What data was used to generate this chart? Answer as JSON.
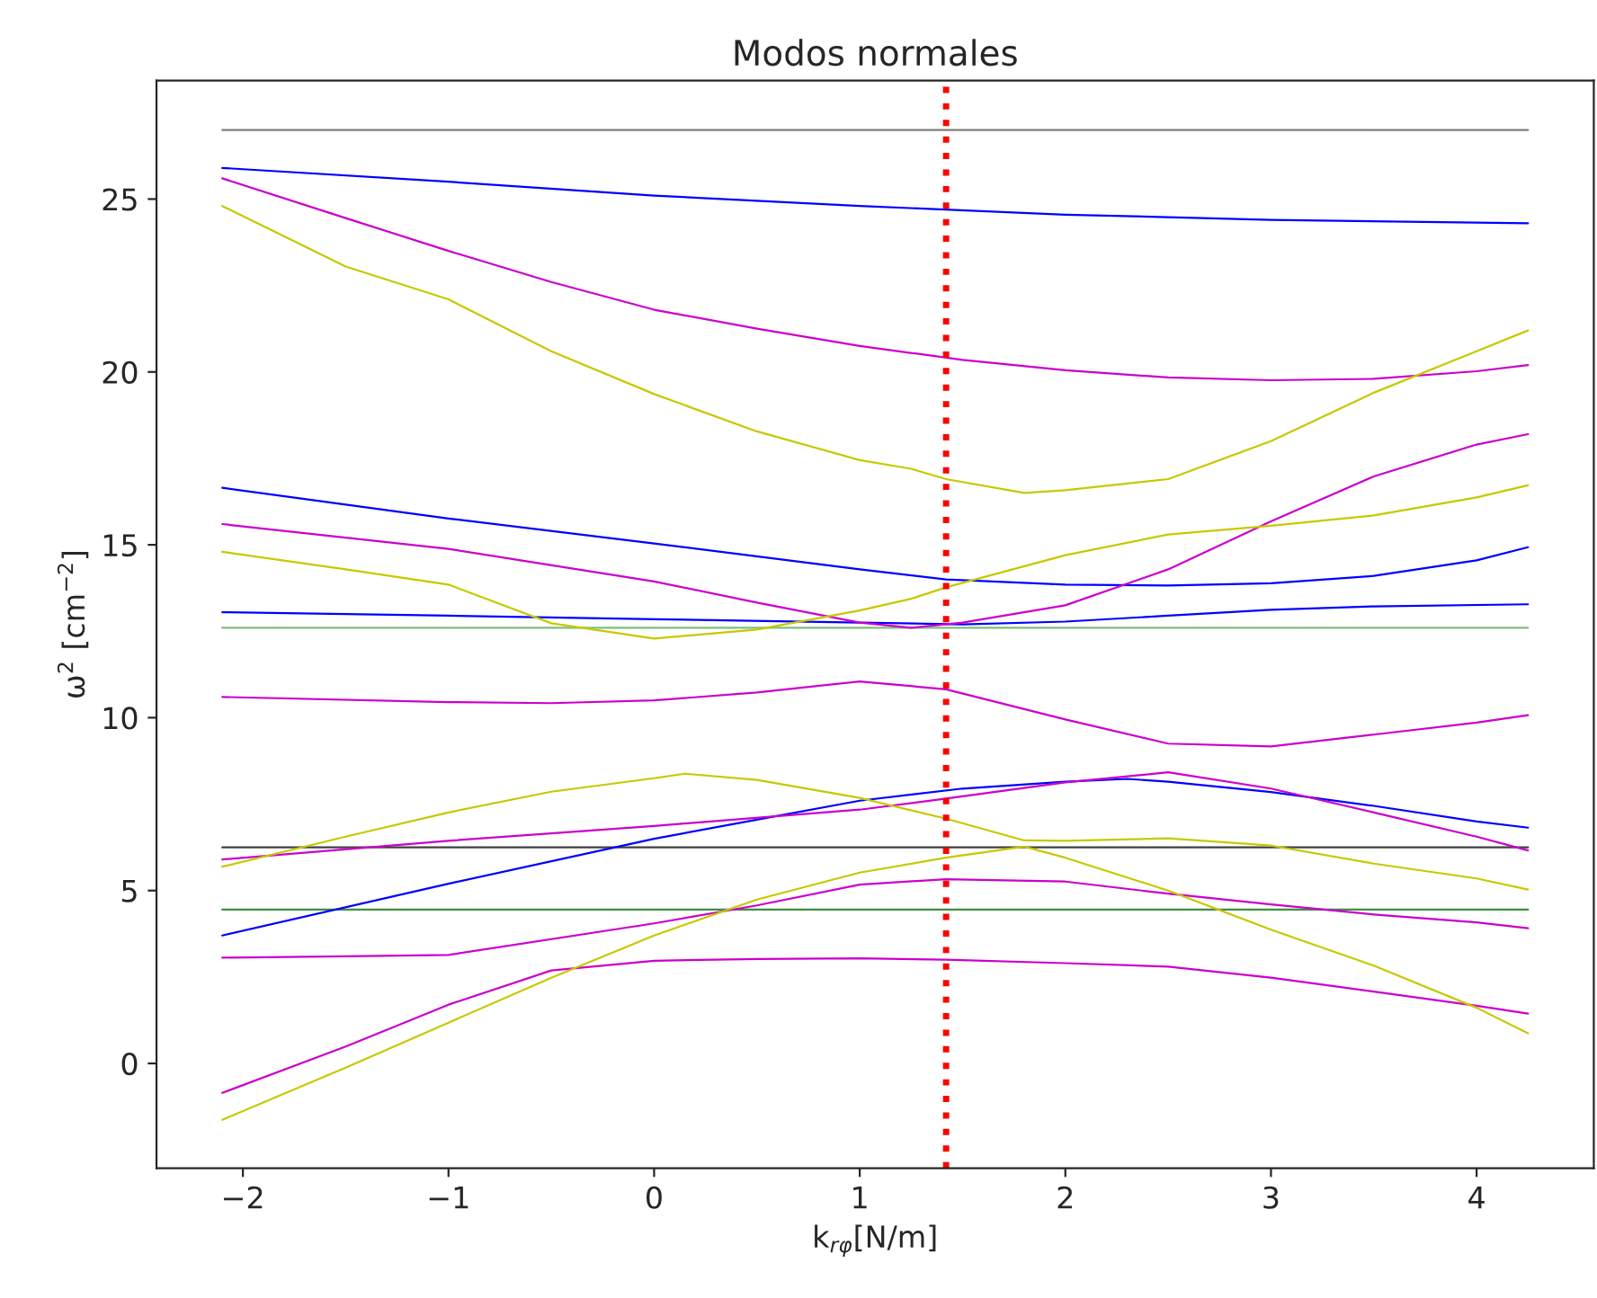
{
  "chart_data": {
    "type": "line",
    "title": "Modos normales",
    "xlabel": "k$_{rφ}$[N/m]",
    "ylabel": "ω$^{2}$ [cm$^{−2}$]",
    "xlim": [
      -2.42,
      4.57
    ],
    "ylim": [
      -3.03,
      28.43
    ],
    "xticks": [
      -2,
      -1,
      0,
      1,
      2,
      3,
      4
    ],
    "yticks": [
      0,
      5,
      10,
      15,
      20,
      25
    ],
    "grid": false,
    "line_style": "solid",
    "marker": "none",
    "series": [
      {
        "color": "#7f7f7f",
        "x": [
          -2.1,
          4.25
        ],
        "values": [
          27.0,
          27.0
        ]
      },
      {
        "color": "#404040",
        "x": [
          -2.1,
          4.25
        ],
        "values": [
          6.25,
          6.25
        ]
      },
      {
        "color": "#7fbf7f",
        "x": [
          -2.1,
          4.25
        ],
        "values": [
          12.6,
          12.6
        ]
      },
      {
        "color": "#3f8f3f",
        "x": [
          -2.1,
          4.25
        ],
        "values": [
          4.45,
          4.45
        ]
      },
      {
        "color": "#0000ff",
        "x": [
          -2.1,
          -1,
          0,
          1,
          2,
          3,
          4.25
        ],
        "values": [
          25.9,
          25.5,
          25.1,
          24.8,
          24.55,
          24.4,
          24.3
        ]
      },
      {
        "color": "#0000ff",
        "x": [
          -2.1,
          -1,
          0,
          1,
          1.42,
          2,
          2.5,
          3,
          3.5,
          4,
          4.25
        ],
        "values": [
          16.65,
          15.76,
          15.04,
          14.29,
          14.0,
          13.85,
          13.82,
          13.89,
          14.1,
          14.55,
          14.93
        ]
      },
      {
        "color": "#0000ff",
        "x": [
          -2.1,
          -1,
          0,
          1,
          1.5,
          2,
          2.5,
          3,
          3.5,
          4.25
        ],
        "values": [
          13.05,
          12.95,
          12.85,
          12.75,
          12.7,
          12.78,
          12.95,
          13.12,
          13.22,
          13.28
        ]
      },
      {
        "color": "#0000ff",
        "x": [
          -2.1,
          -1,
          0,
          0.5,
          1,
          1.5,
          2,
          2.3,
          2.5,
          3,
          3.5,
          4,
          4.25
        ],
        "values": [
          3.7,
          5.2,
          6.5,
          7.05,
          7.6,
          7.95,
          8.15,
          8.23,
          8.15,
          7.85,
          7.45,
          7.0,
          6.82
        ]
      },
      {
        "color": "#cc00cc",
        "x": [
          -2.1,
          -1.5,
          -1,
          -0.5,
          0,
          0.5,
          1,
          1.5,
          2,
          2.5,
          3,
          3.5,
          4,
          4.25
        ],
        "values": [
          25.6,
          24.45,
          23.5,
          22.6,
          21.8,
          21.25,
          20.75,
          20.35,
          20.05,
          19.84,
          19.76,
          19.8,
          20.02,
          20.2
        ]
      },
      {
        "color": "#cc00cc",
        "x": [
          -2.1,
          -1,
          0,
          0.5,
          1,
          1.25,
          1.5,
          2,
          2.5,
          3,
          3.5,
          4,
          4.25
        ],
        "values": [
          15.6,
          14.88,
          13.94,
          13.33,
          12.75,
          12.6,
          12.75,
          13.25,
          14.29,
          15.68,
          16.98,
          17.9,
          18.2
        ]
      },
      {
        "color": "#cc00cc",
        "x": [
          -2.1,
          -1,
          -0.5,
          0,
          0.5,
          1,
          1.42,
          2,
          2.5,
          3,
          3.5,
          4,
          4.25
        ],
        "values": [
          10.6,
          10.45,
          10.42,
          10.5,
          10.73,
          11.05,
          10.82,
          9.95,
          9.25,
          9.17,
          9.51,
          9.86,
          10.07
        ]
      },
      {
        "color": "#cc00cc",
        "x": [
          -2.1,
          -1,
          0,
          1,
          1.42,
          2,
          2.5,
          3,
          3.5,
          4,
          4.25
        ],
        "values": [
          5.9,
          6.44,
          6.87,
          7.34,
          7.66,
          8.13,
          8.42,
          7.95,
          7.26,
          6.56,
          6.16
        ]
      },
      {
        "color": "#cc00cc",
        "x": [
          -2.1,
          -1.5,
          -1,
          0,
          0.5,
          1,
          1.42,
          2,
          2.5,
          3,
          3.5,
          4,
          4.25
        ],
        "values": [
          3.06,
          3.1,
          3.14,
          4.05,
          4.57,
          5.17,
          5.33,
          5.26,
          4.91,
          4.6,
          4.31,
          4.08,
          3.91
        ]
      },
      {
        "color": "#cc00cc",
        "x": [
          -2.1,
          -1.5,
          -1,
          -0.5,
          0,
          0.5,
          1,
          1.42,
          2,
          2.5,
          3,
          3.5,
          4,
          4.25
        ],
        "values": [
          -0.85,
          0.49,
          1.7,
          2.69,
          2.97,
          3.02,
          3.04,
          3.0,
          2.9,
          2.8,
          2.48,
          2.08,
          1.67,
          1.44
        ]
      },
      {
        "color": "#c8c800",
        "x": [
          -2.1,
          -1.5,
          -1,
          -0.5,
          0,
          0.5,
          1,
          1.25,
          1.42,
          1.8,
          2,
          2.5,
          3,
          3.5,
          4,
          4.25
        ],
        "values": [
          24.8,
          23.05,
          22.1,
          20.6,
          19.36,
          18.28,
          17.45,
          17.2,
          16.9,
          16.5,
          16.58,
          16.9,
          18.0,
          19.4,
          20.6,
          21.2
        ]
      },
      {
        "color": "#c8c800",
        "x": [
          -2.1,
          -1.5,
          -1,
          -0.5,
          0,
          0.5,
          1,
          1.25,
          1.42,
          2,
          2.5,
          3,
          3.5,
          4,
          4.25
        ],
        "values": [
          14.8,
          14.29,
          13.85,
          12.73,
          12.29,
          12.55,
          13.1,
          13.44,
          13.77,
          14.7,
          15.3,
          15.55,
          15.85,
          16.37,
          16.72
        ]
      },
      {
        "color": "#c8c800",
        "x": [
          -2.1,
          -1.5,
          -1,
          -0.5,
          0,
          0.15,
          0.5,
          1,
          1.42,
          1.8,
          2,
          2.5,
          3,
          3.5,
          4,
          4.25
        ],
        "values": [
          5.69,
          6.56,
          7.26,
          7.86,
          8.25,
          8.38,
          8.2,
          7.68,
          7.08,
          6.45,
          6.44,
          6.51,
          6.3,
          5.78,
          5.35,
          5.03
        ]
      },
      {
        "color": "#c8c800",
        "x": [
          -2.1,
          -1.5,
          -1,
          -0.5,
          0,
          0.5,
          1,
          1.42,
          1.8,
          2,
          2.5,
          3,
          3.5,
          4,
          4.25
        ],
        "values": [
          -1.63,
          -0.12,
          1.18,
          2.48,
          3.7,
          4.74,
          5.52,
          5.95,
          6.27,
          5.95,
          5.0,
          3.87,
          2.83,
          1.61,
          0.87
        ]
      }
    ],
    "ref_lines": [
      {
        "axis": "x",
        "value": 1.42,
        "color": "#ff0000",
        "line_style": "dotted"
      }
    ]
  }
}
